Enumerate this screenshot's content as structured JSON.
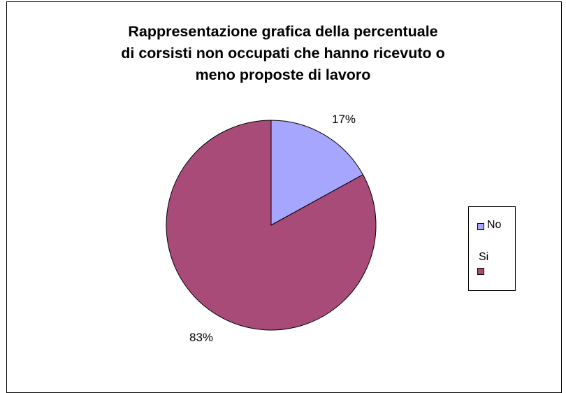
{
  "chart_data": {
    "type": "pie",
    "title": "Rappresentazione grafica della percentuale di corsisti non occupati che hanno ricevuto o meno proposte di lavoro",
    "title_lines": [
      "Rappresentazione grafica della percentuale",
      "di corsisti non occupati che hanno ricevuto o",
      "meno proposte di lavoro"
    ],
    "categories": [
      "No",
      "Si"
    ],
    "values": [
      17,
      83
    ],
    "data_labels": [
      "17%",
      "83%"
    ],
    "colors": [
      "#a6a6ff",
      "#a84b78"
    ],
    "legend_position": "right"
  }
}
